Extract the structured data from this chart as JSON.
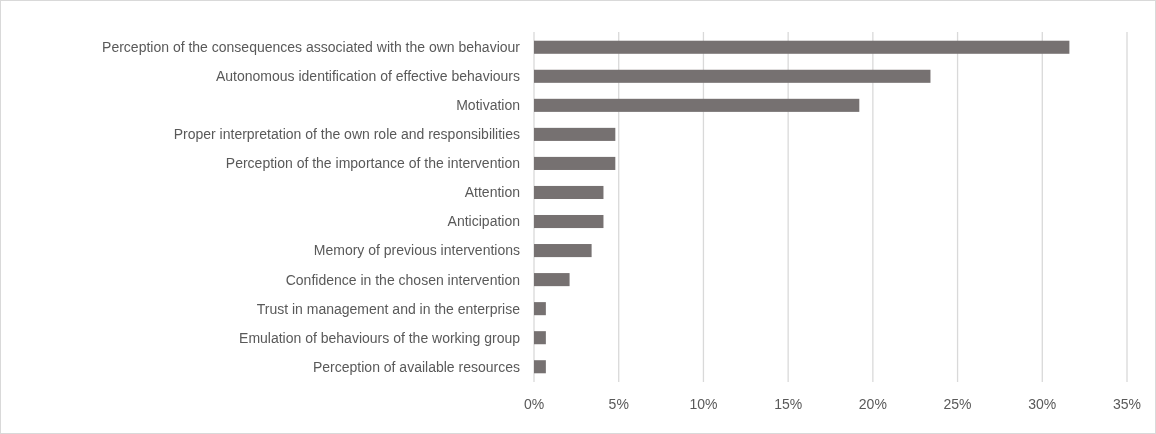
{
  "chart_data": {
    "type": "bar",
    "orientation": "horizontal",
    "categories": [
      "Perception of the consequences associated with the own behaviour",
      "Autonomous identification of effective behaviours",
      "Motivation",
      "Proper interpretation of the own role and responsibilities",
      "Perception of the importance of the intervention",
      "Attention",
      "Anticipation",
      "Memory of previous interventions",
      "Confidence in the chosen intervention",
      "Trust in management and in the enterprise",
      "Emulation of behaviours of the working group",
      "Perception of available resources"
    ],
    "values": [
      31.6,
      23.4,
      19.2,
      4.8,
      4.8,
      4.1,
      4.1,
      3.4,
      2.1,
      0.7,
      0.7,
      0.7
    ],
    "color": "#767171",
    "xlim": [
      0,
      35
    ],
    "xticks": [
      {
        "value": 0,
        "label": "0%"
      },
      {
        "value": 5,
        "label": "5%"
      },
      {
        "value": 10,
        "label": "10%"
      },
      {
        "value": 15,
        "label": "15%"
      },
      {
        "value": 20,
        "label": "20%"
      },
      {
        "value": 25,
        "label": "25%"
      },
      {
        "value": 30,
        "label": "30%"
      },
      {
        "value": 35,
        "label": "35%"
      }
    ],
    "grid": "x"
  }
}
